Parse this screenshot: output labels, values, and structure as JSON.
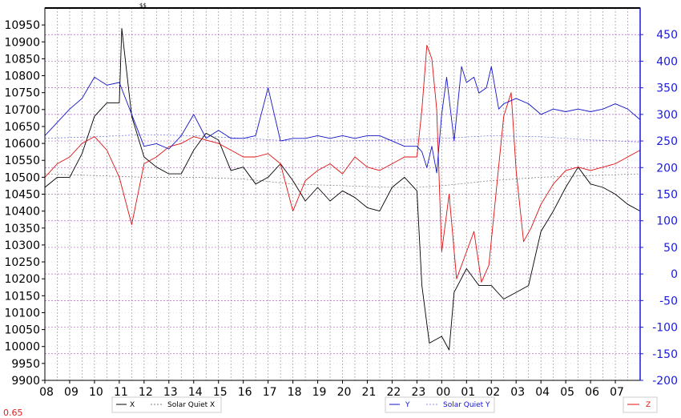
{
  "top_marker": "$$",
  "scale_label": "0.65",
  "legends": {
    "x": {
      "line": "X",
      "quiet": "Solar Quiet X"
    },
    "y": {
      "line": "Y",
      "quiet": "Solar Quiet Y"
    },
    "z": {
      "line": "Z"
    }
  },
  "colors": {
    "x": "#000000",
    "y": "#1414c8",
    "z": "#e01010",
    "axis_right": "#1a1adb",
    "grid_h": "#b55fc6",
    "grid_v": "#9a9a9a"
  },
  "chart_data": {
    "type": "line",
    "x_tick_labels": [
      "08",
      "09",
      "10",
      "11",
      "12",
      "13",
      "14",
      "15",
      "16",
      "17",
      "18",
      "19",
      "20",
      "21",
      "22",
      "23",
      "00",
      "01",
      "02",
      "03",
      "04",
      "05",
      "06",
      "07"
    ],
    "x_range": [
      0,
      24
    ],
    "left_axis": {
      "range": [
        9900,
        11000
      ],
      "ticks": [
        9900,
        9950,
        10000,
        10050,
        10100,
        10150,
        10200,
        10250,
        10300,
        10350,
        10400,
        10450,
        10500,
        10550,
        10600,
        10650,
        10700,
        10750,
        10800,
        10850,
        10900,
        10950
      ]
    },
    "right_axis": {
      "range": [
        -200,
        500
      ],
      "ticks": [
        -200,
        -150,
        -100,
        -50,
        0,
        50,
        100,
        150,
        200,
        250,
        300,
        350,
        400,
        450
      ]
    },
    "series": [
      {
        "name": "X",
        "axis": "left",
        "x": [
          0,
          0.5,
          1,
          1.5,
          2,
          2.5,
          3,
          3.1,
          3.5,
          4,
          4.5,
          5,
          5.5,
          6,
          6.5,
          7,
          7.5,
          8,
          8.5,
          9,
          9.5,
          10,
          10.5,
          11,
          11.5,
          12,
          12.5,
          13,
          13.5,
          14,
          14.5,
          15,
          15.2,
          15.5,
          16,
          16.3,
          16.5,
          17,
          17.5,
          18,
          18.5,
          19,
          19.5,
          20,
          20.5,
          21,
          21.5,
          22,
          22.5,
          23,
          23.5,
          24
        ],
        "y": [
          10470,
          10500,
          10500,
          10570,
          10680,
          10720,
          10720,
          10940,
          10680,
          10560,
          10530,
          10510,
          10510,
          10580,
          10630,
          10610,
          10520,
          10530,
          10480,
          10500,
          10540,
          10490,
          10430,
          10470,
          10430,
          10460,
          10440,
          10410,
          10400,
          10470,
          10500,
          10460,
          10180,
          10010,
          10030,
          9990,
          10160,
          10230,
          10180,
          10180,
          10140,
          10160,
          10180,
          10340,
          10400,
          10470,
          10530,
          10480,
          10470,
          10450,
          10420,
          10400
        ]
      },
      {
        "name": "Solar Quiet X",
        "axis": "left",
        "x": [
          0,
          2,
          4,
          6,
          8,
          10,
          12,
          14,
          15,
          16,
          18,
          20,
          22,
          24
        ],
        "y": [
          10510,
          10505,
          10500,
          10500,
          10495,
          10480,
          10475,
          10470,
          10470,
          10475,
          10490,
          10500,
          10505,
          10510
        ]
      },
      {
        "name": "Y",
        "axis": "right",
        "x": [
          0,
          0.5,
          1,
          1.5,
          2,
          2.5,
          3,
          3.5,
          4,
          4.5,
          5,
          5.5,
          6,
          6.5,
          7,
          7.5,
          8,
          8.5,
          9,
          9.5,
          10,
          10.5,
          11,
          11.5,
          12,
          12.5,
          13,
          13.5,
          14,
          14.5,
          15,
          15.2,
          15.4,
          15.6,
          15.8,
          16,
          16.2,
          16.5,
          16.8,
          17,
          17.3,
          17.5,
          17.8,
          18,
          18.3,
          18.5,
          19,
          19.5,
          20,
          20.5,
          21,
          21.5,
          22,
          22.5,
          23,
          23.5,
          24
        ],
        "y": [
          260,
          285,
          310,
          330,
          370,
          355,
          360,
          300,
          240,
          245,
          235,
          260,
          300,
          255,
          270,
          255,
          255,
          260,
          350,
          250,
          255,
          255,
          260,
          255,
          260,
          255,
          260,
          260,
          250,
          240,
          240,
          230,
          200,
          240,
          190,
          300,
          370,
          250,
          390,
          360,
          370,
          340,
          350,
          390,
          310,
          320,
          330,
          320,
          300,
          310,
          305,
          310,
          305,
          310,
          320,
          310,
          290
        ]
      },
      {
        "name": "Solar Quiet Y",
        "axis": "right",
        "x": [
          0,
          2,
          4,
          6,
          8,
          10,
          12,
          14,
          16,
          18,
          20,
          22,
          24
        ],
        "y": [
          255,
          258,
          262,
          260,
          255,
          250,
          250,
          252,
          255,
          260,
          258,
          252,
          248
        ]
      },
      {
        "name": "Z",
        "axis": "left",
        "x": [
          0,
          0.5,
          1,
          1.5,
          2,
          2.5,
          3,
          3.5,
          4,
          4.5,
          5,
          5.5,
          6,
          6.5,
          7,
          7.5,
          8,
          8.5,
          9,
          9.5,
          10,
          10.5,
          11,
          11.5,
          12,
          12.5,
          13,
          13.5,
          14,
          14.5,
          15,
          15.2,
          15.4,
          15.6,
          15.8,
          16,
          16.3,
          16.6,
          17,
          17.3,
          17.6,
          17.9,
          18.2,
          18.5,
          18.8,
          19,
          19.3,
          19.6,
          20,
          20.5,
          21,
          21.5,
          22,
          22.5,
          23,
          23.5,
          24
        ],
        "y": [
          10500,
          10540,
          10560,
          10600,
          10620,
          10580,
          10500,
          10360,
          10540,
          10560,
          10590,
          10600,
          10620,
          10610,
          10600,
          10580,
          10560,
          10560,
          10570,
          10540,
          10400,
          10490,
          10520,
          10540,
          10510,
          10560,
          10530,
          10520,
          10540,
          10560,
          10560,
          10700,
          10890,
          10850,
          10700,
          10280,
          10450,
          10200,
          10280,
          10340,
          10190,
          10240,
          10460,
          10680,
          10750,
          10520,
          10310,
          10350,
          10420,
          10480,
          10520,
          10530,
          10520,
          10530,
          10540,
          10560,
          10580
        ]
      }
    ]
  }
}
